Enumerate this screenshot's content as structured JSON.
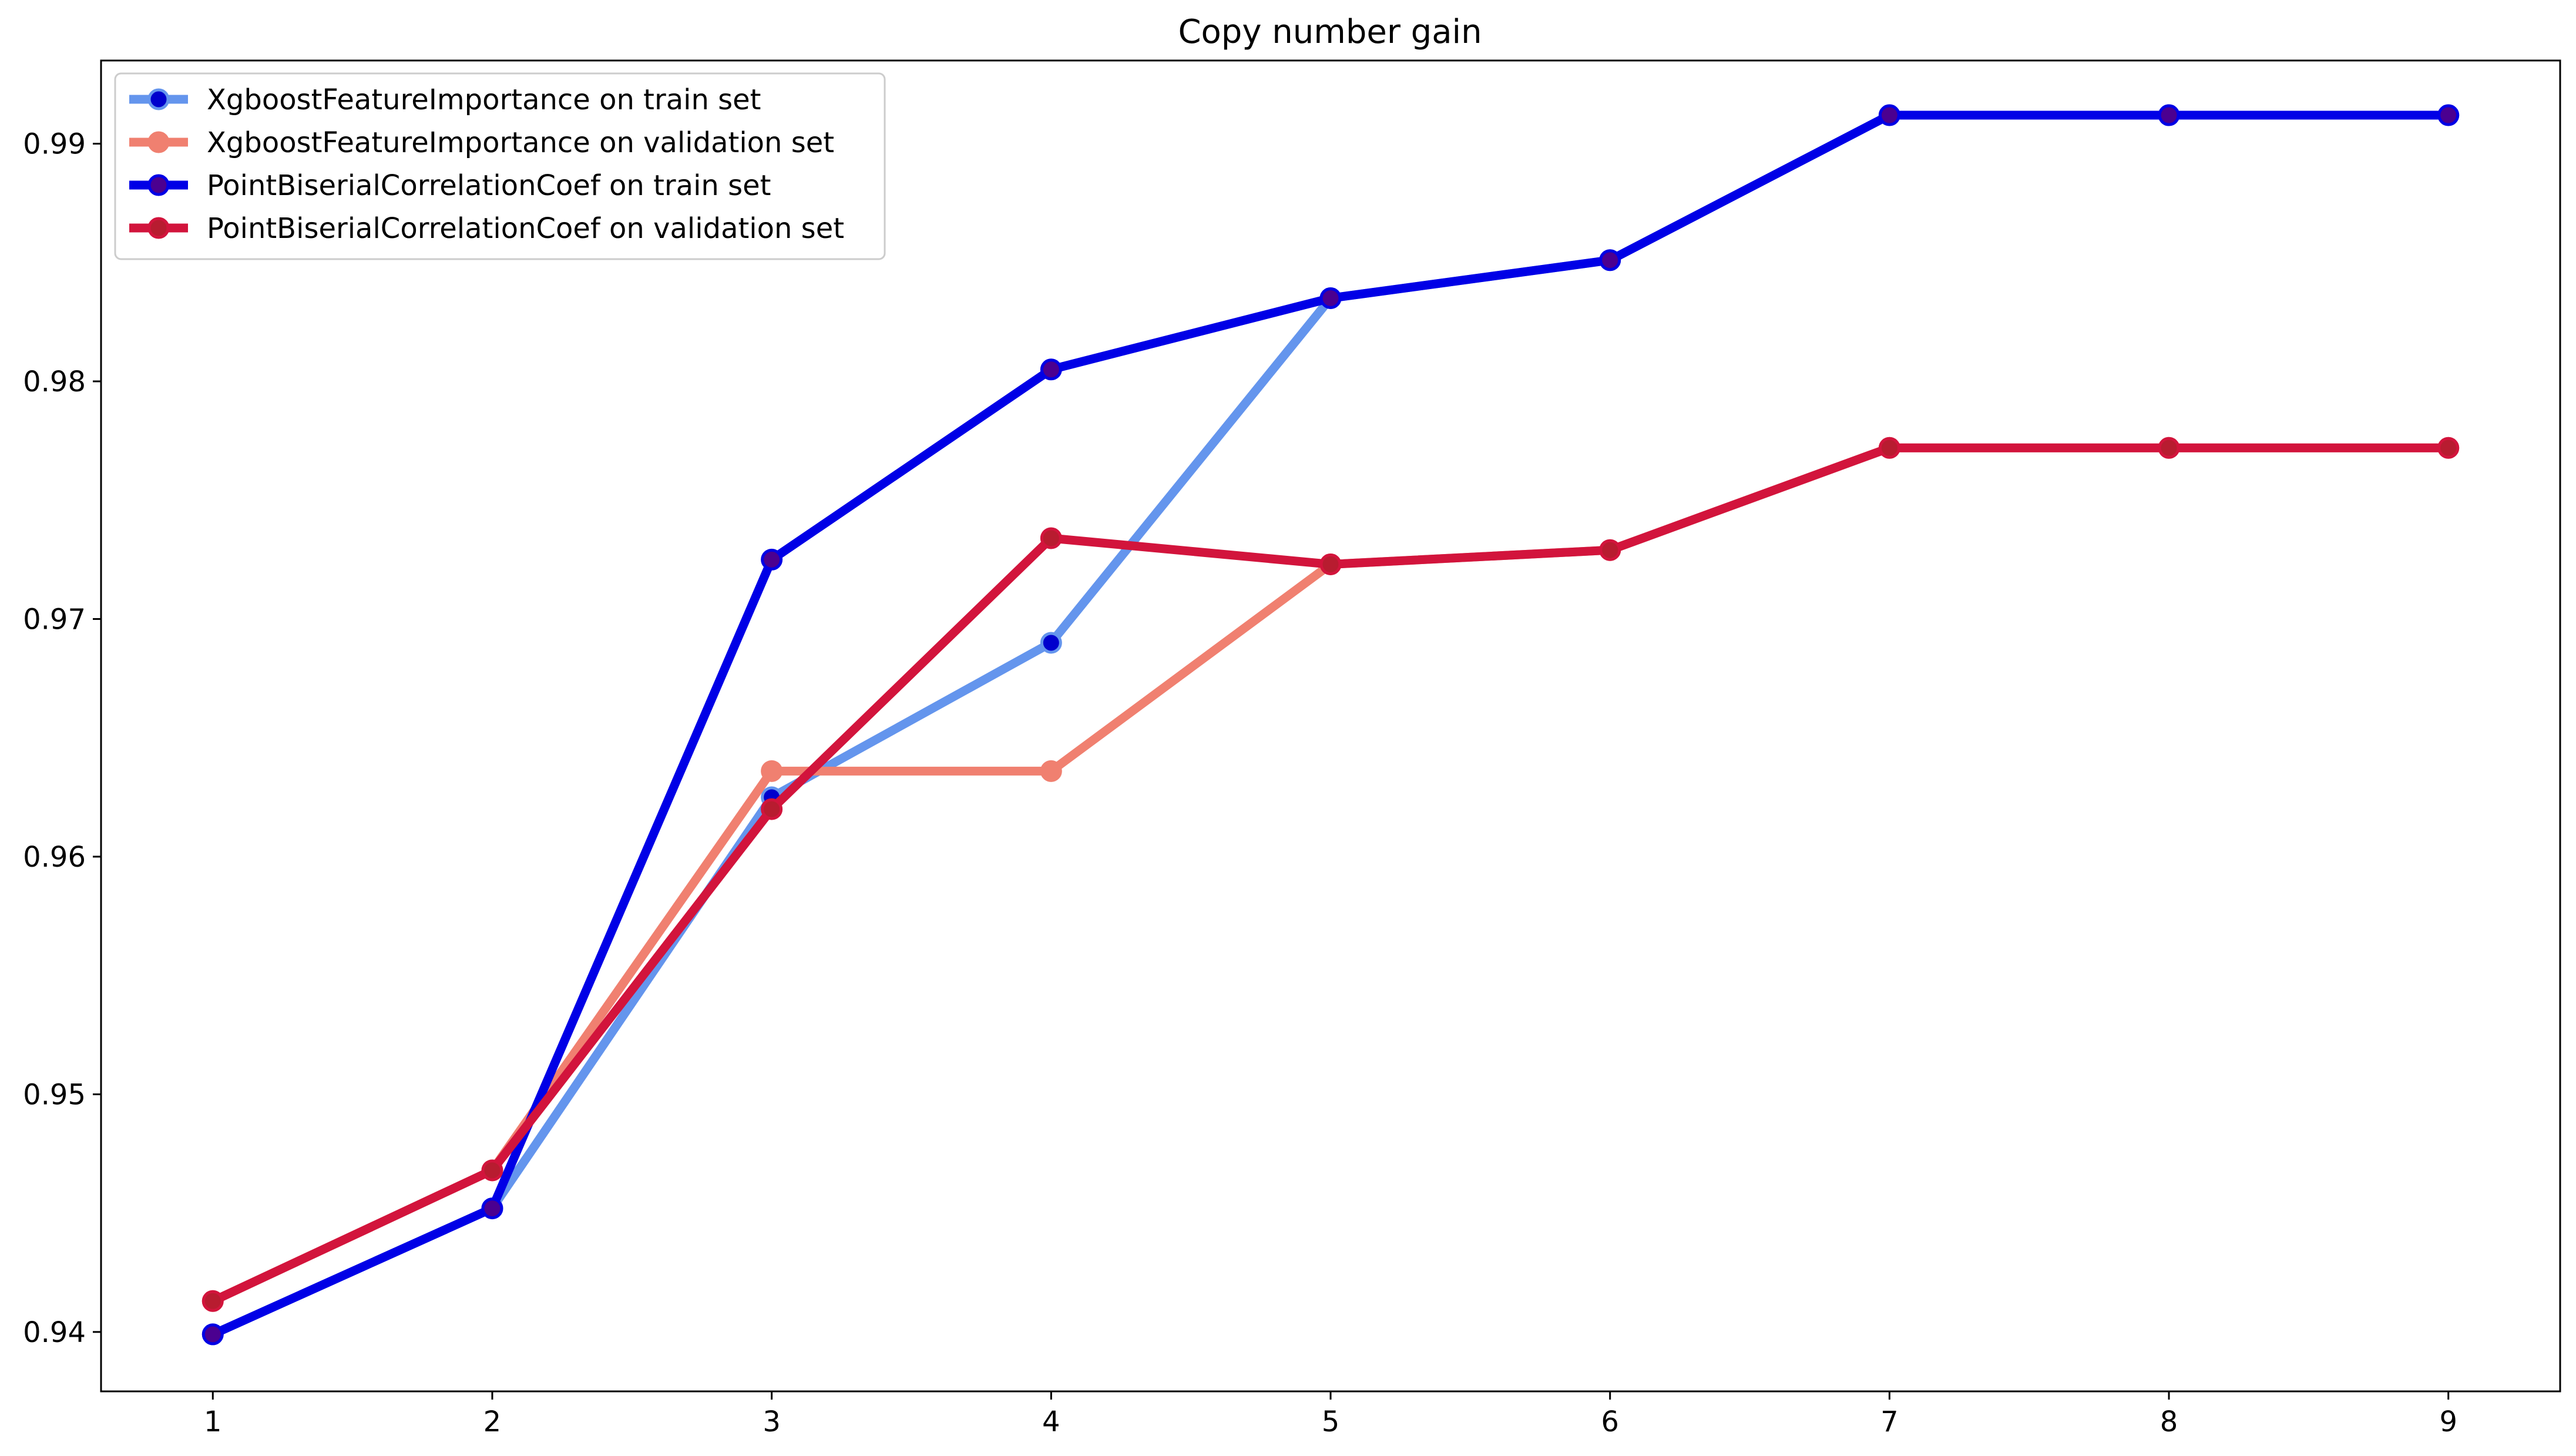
{
  "chart_data": {
    "type": "line",
    "title": "Copy number gain",
    "xlabel": "",
    "ylabel": "",
    "x": [
      1,
      2,
      3,
      4,
      5,
      6,
      7,
      8,
      9
    ],
    "xlim": [
      0.6,
      9.4
    ],
    "ylim": [
      0.9375,
      0.9935
    ],
    "x_ticks": [
      1,
      2,
      3,
      4,
      5,
      6,
      7,
      8,
      9
    ],
    "y_ticks": [
      0.94,
      0.95,
      0.96,
      0.97,
      0.98,
      0.99
    ],
    "x_tick_labels": [
      "1",
      "2",
      "3",
      "4",
      "5",
      "6",
      "7",
      "8",
      "9"
    ],
    "y_tick_labels": [
      "0.94",
      "0.95",
      "0.96",
      "0.97",
      "0.98",
      "0.99"
    ],
    "grid": false,
    "legend_position": "top-left",
    "series": [
      {
        "name": "XgboostFeatureImportance on train set",
        "color": "#6495ed",
        "marker_face": "#0000cd",
        "values": [
          0.9399,
          0.9452,
          0.9625,
          0.969,
          0.9835,
          0.9851,
          0.9912,
          0.9912,
          0.9912
        ]
      },
      {
        "name": "XgboostFeatureImportance on validation set",
        "color": "#f08070",
        "marker_face": "#f08070",
        "values": [
          0.9413,
          0.9468,
          0.9636,
          0.9636,
          0.9723,
          0.9729,
          0.9772,
          0.9772,
          0.9772
        ]
      },
      {
        "name": "PointBiserialCorrelationCoef on train set",
        "color": "#0000e6",
        "marker_face": "#4b0090",
        "values": [
          0.9399,
          0.9452,
          0.9725,
          0.9805,
          0.9835,
          0.9851,
          0.9912,
          0.9912,
          0.9912
        ]
      },
      {
        "name": "PointBiserialCorrelationCoef on validation set",
        "color": "#d2143c",
        "marker_face": "#b81c30",
        "values": [
          0.9413,
          0.9468,
          0.962,
          0.9734,
          0.9723,
          0.9729,
          0.9772,
          0.9772,
          0.9772
        ]
      }
    ]
  }
}
